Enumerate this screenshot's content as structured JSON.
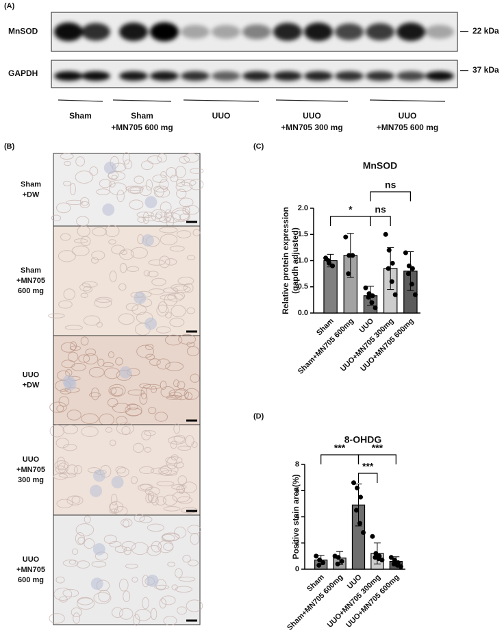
{
  "panel_labels": {
    "a": "(A)",
    "b": "(B)",
    "c": "(C)",
    "d": "(D)"
  },
  "blot": {
    "rows": [
      {
        "label": "MnSOD",
        "size": "22 kDa"
      },
      {
        "label": "GAPDH",
        "size": "37 kDa"
      }
    ],
    "groups": [
      [
        "Sham"
      ],
      [
        "Sham",
        "+MN705 600 mg"
      ],
      [
        "UUO"
      ],
      [
        "UUO",
        "+MN705 300 mg"
      ],
      [
        "UUO",
        "+MN705 600 mg"
      ]
    ]
  },
  "histology": {
    "rows": [
      [
        "Sham",
        "+DW"
      ],
      [
        "Sham",
        "+MN705",
        "600 mg"
      ],
      [
        "UUO",
        "+DW"
      ],
      [
        "UUO",
        "+MN705",
        "300 mg"
      ],
      [
        "UUO",
        "+MN705",
        "600 mg"
      ]
    ]
  },
  "chart_data": [
    {
      "type": "bar",
      "title": "MnSOD",
      "y_label": [
        "Relative protein expression",
        "(gapdh adjusted)"
      ],
      "categories": [
        "Sham",
        "Sham+MN705 600mg",
        "UUO",
        "UUO+MN705 300mg",
        "UUO+MN705 600mg"
      ],
      "values": [
        1.0,
        1.1,
        0.33,
        0.85,
        0.8
      ],
      "errors": [
        0.12,
        0.42,
        0.18,
        0.4,
        0.37
      ],
      "points": [
        [
          1.05,
          0.95,
          0.9,
          1.0
        ],
        [
          1.45,
          1.1,
          1.1,
          0.75
        ],
        [
          0.48,
          0.37,
          0.33,
          0.3,
          0.2,
          0.1
        ],
        [
          1.5,
          1.2,
          0.95,
          0.85,
          0.6,
          0.35
        ],
        [
          1.15,
          0.9,
          0.85,
          0.75,
          0.55,
          0.35
        ]
      ],
      "colors": [
        "#808080",
        "#a3a3a3",
        "#6e6e6e",
        "#cdcdcd",
        "#5c5c5c"
      ],
      "ylim": [
        0,
        2
      ],
      "yticks": [
        {
          "value": 0,
          "label": "0.0"
        },
        0.5,
        {
          "value": 1,
          "label": "1.0"
        },
        1.5,
        {
          "value": 2,
          "label": "2.0"
        }
      ],
      "annotations": [
        {
          "label": "*",
          "between": [
            "Sham",
            "UUO"
          ]
        },
        {
          "label": "ns",
          "between": [
            "UUO",
            "UUO+MN705 300mg"
          ]
        },
        {
          "label": "ns",
          "between": [
            "UUO",
            "UUO+MN705 600mg"
          ]
        }
      ]
    },
    {
      "type": "bar",
      "title": "8-OHDG",
      "y_label": [
        "Positive stain area(%)"
      ],
      "categories": [
        "Sham",
        "Sham+MN705 600mg",
        "UUO",
        "UUO+MN705 300mg",
        "UUO+MN705 600mg"
      ],
      "values": [
        0.7,
        0.85,
        4.9,
        1.2,
        0.6
      ],
      "errors": [
        0.35,
        0.5,
        1.6,
        0.8,
        0.35
      ],
      "points": [
        [
          1.0,
          0.7,
          0.5,
          0.3
        ],
        [
          1.0,
          0.9,
          0.6,
          0.4
        ],
        [
          6.6,
          6.2,
          5.5,
          4.5,
          3.5,
          2.8
        ],
        [
          2.5,
          1.2,
          1.0,
          0.9,
          0.8,
          0.7
        ],
        [
          0.9,
          0.7,
          0.5,
          0.4,
          0.3,
          0.2
        ]
      ],
      "colors": [
        "#808080",
        "#a3a3a3",
        "#6e6e6e",
        "#cdcdcd",
        "#5c5c5c"
      ],
      "ylim": [
        0,
        8
      ],
      "yticks": [
        0,
        2,
        4,
        6,
        8
      ],
      "annotations": [
        {
          "label": "***",
          "between": [
            "Sham",
            "UUO"
          ]
        },
        {
          "label": "***",
          "between": [
            "UUO",
            "UUO+MN705 300mg"
          ]
        },
        {
          "label": "***",
          "between": [
            "UUO",
            "UUO+MN705 600mg"
          ]
        }
      ]
    }
  ]
}
